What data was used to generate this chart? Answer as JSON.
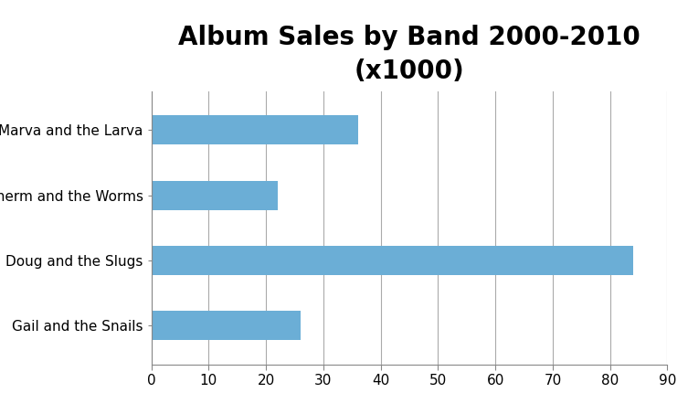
{
  "title": "Album Sales by Band 2000-2010\n(x1000)",
  "categories": [
    "Gail and the Snails",
    "Doug and the Slugs",
    "Sherm and the Worms",
    "Marva and the Larva"
  ],
  "values": [
    26,
    84,
    22,
    36
  ],
  "bar_color": "#6baed6",
  "xlim": [
    0,
    90
  ],
  "xticks": [
    0,
    10,
    20,
    30,
    40,
    50,
    60,
    70,
    80,
    90
  ],
  "title_fontsize": 20,
  "tick_fontsize": 11,
  "label_fontsize": 11,
  "background_color": "#ffffff",
  "bar_height": 0.45
}
